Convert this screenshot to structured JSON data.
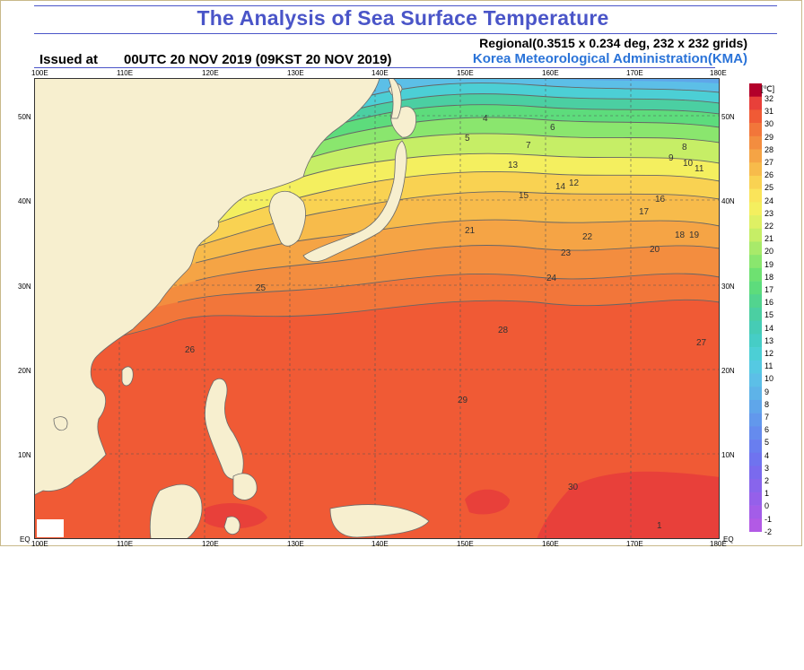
{
  "header": {
    "title": "The Analysis of Sea Surface Temperature",
    "regional": "Regional(0.3515 x 0.234 deg, 232 x 232 grids)",
    "issued_label": "Issued at",
    "issued_time": "00UTC 20 NOV 2019 (09KST 20 NOV 2019)",
    "agency": "Korea Meteorological Administration(KMA)"
  },
  "map": {
    "lon_ticks": [
      "100E",
      "110E",
      "120E",
      "130E",
      "140E",
      "150E",
      "160E",
      "170E",
      "180E"
    ],
    "lat_ticks": [
      "50N",
      "40N",
      "30N",
      "20N",
      "10N",
      "EQ"
    ],
    "contour_labels": [
      "4",
      "5",
      "6",
      "7",
      "8",
      "9",
      "10",
      "11",
      "12",
      "13",
      "14",
      "15",
      "16",
      "17",
      "18",
      "19",
      "20",
      "21",
      "22",
      "23",
      "24",
      "25",
      "26",
      "27",
      "28",
      "29",
      "30",
      "1"
    ],
    "colors": {
      "land": "#f7efcf",
      "coast": "#6b6b6b",
      "grid": "#555555"
    }
  },
  "colorbar": {
    "unit": "[℃]",
    "labels": [
      "32",
      "31",
      "30",
      "29",
      "28",
      "27",
      "26",
      "25",
      "24",
      "23",
      "22",
      "21",
      "20",
      "19",
      "18",
      "17",
      "16",
      "15",
      "14",
      "13",
      "12",
      "11",
      "10",
      "9",
      "8",
      "7",
      "6",
      "5",
      "4",
      "3",
      "2",
      "1",
      "0",
      "-1",
      "-2"
    ],
    "colors": [
      "#b3002a",
      "#e8403a",
      "#f05a35",
      "#f2763a",
      "#f38d3f",
      "#f5a445",
      "#f7bb4b",
      "#f9d252",
      "#fae45a",
      "#f4ef5f",
      "#dff064",
      "#c6ee66",
      "#a8ea6a",
      "#8ae66e",
      "#6ee171",
      "#5ddc7c",
      "#52d48f",
      "#4bcfa2",
      "#46ccb5",
      "#46cdc6",
      "#4ccfd5",
      "#55c9e2",
      "#5cbfe7",
      "#5eb3e8",
      "#5fa6ea",
      "#6298ec",
      "#658bee",
      "#697eef",
      "#6f73ef",
      "#7a6aee",
      "#8865ec",
      "#9560ea",
      "#a35de8",
      "#b25ae5"
    ]
  }
}
